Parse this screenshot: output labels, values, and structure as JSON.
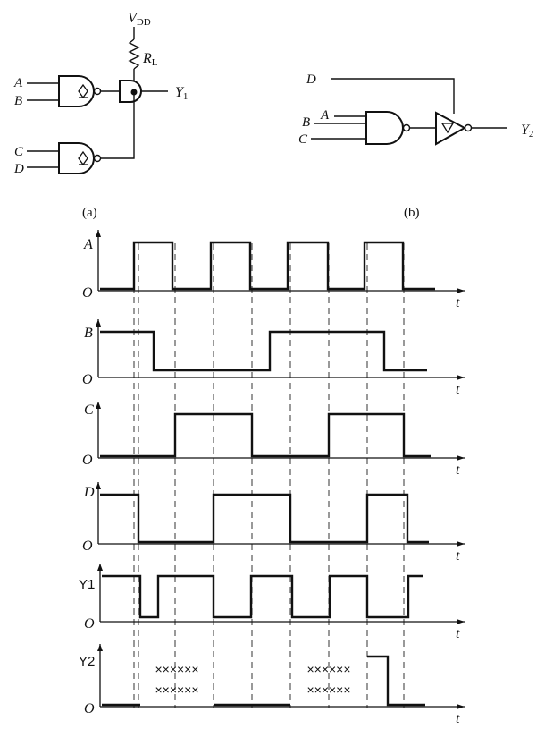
{
  "circuit_a": {
    "supply": "V",
    "supply_sub": "DD",
    "resistor": "R",
    "resistor_sub": "L",
    "inputs": [
      "A",
      "B",
      "C",
      "D"
    ],
    "output": "Y",
    "output_sub": "1",
    "caption": "(a)"
  },
  "circuit_b": {
    "inputs": [
      "D",
      "B",
      "A",
      "C"
    ],
    "output": "Y",
    "output_sub": "2",
    "caption": "(b)"
  },
  "timing": {
    "origin_label": "O",
    "time_label": "t",
    "dont_care": "××××××",
    "signals": [
      {
        "name": "A",
        "levels": [
          0,
          1,
          0,
          1,
          0,
          1,
          0,
          1,
          0
        ]
      },
      {
        "name": "B",
        "levels": [
          1,
          0,
          1,
          0
        ]
      },
      {
        "name": "C",
        "levels": [
          0,
          1,
          0,
          1,
          0
        ]
      },
      {
        "name": "D",
        "levels": [
          1,
          0,
          1,
          0,
          1,
          0
        ]
      },
      {
        "name": "Y1",
        "levels": [
          1,
          0,
          1,
          0,
          1,
          0,
          1,
          0,
          1
        ]
      },
      {
        "name": "Y2",
        "levels": [
          "0",
          "X",
          "0",
          "X",
          "1",
          "0"
        ]
      }
    ]
  }
}
